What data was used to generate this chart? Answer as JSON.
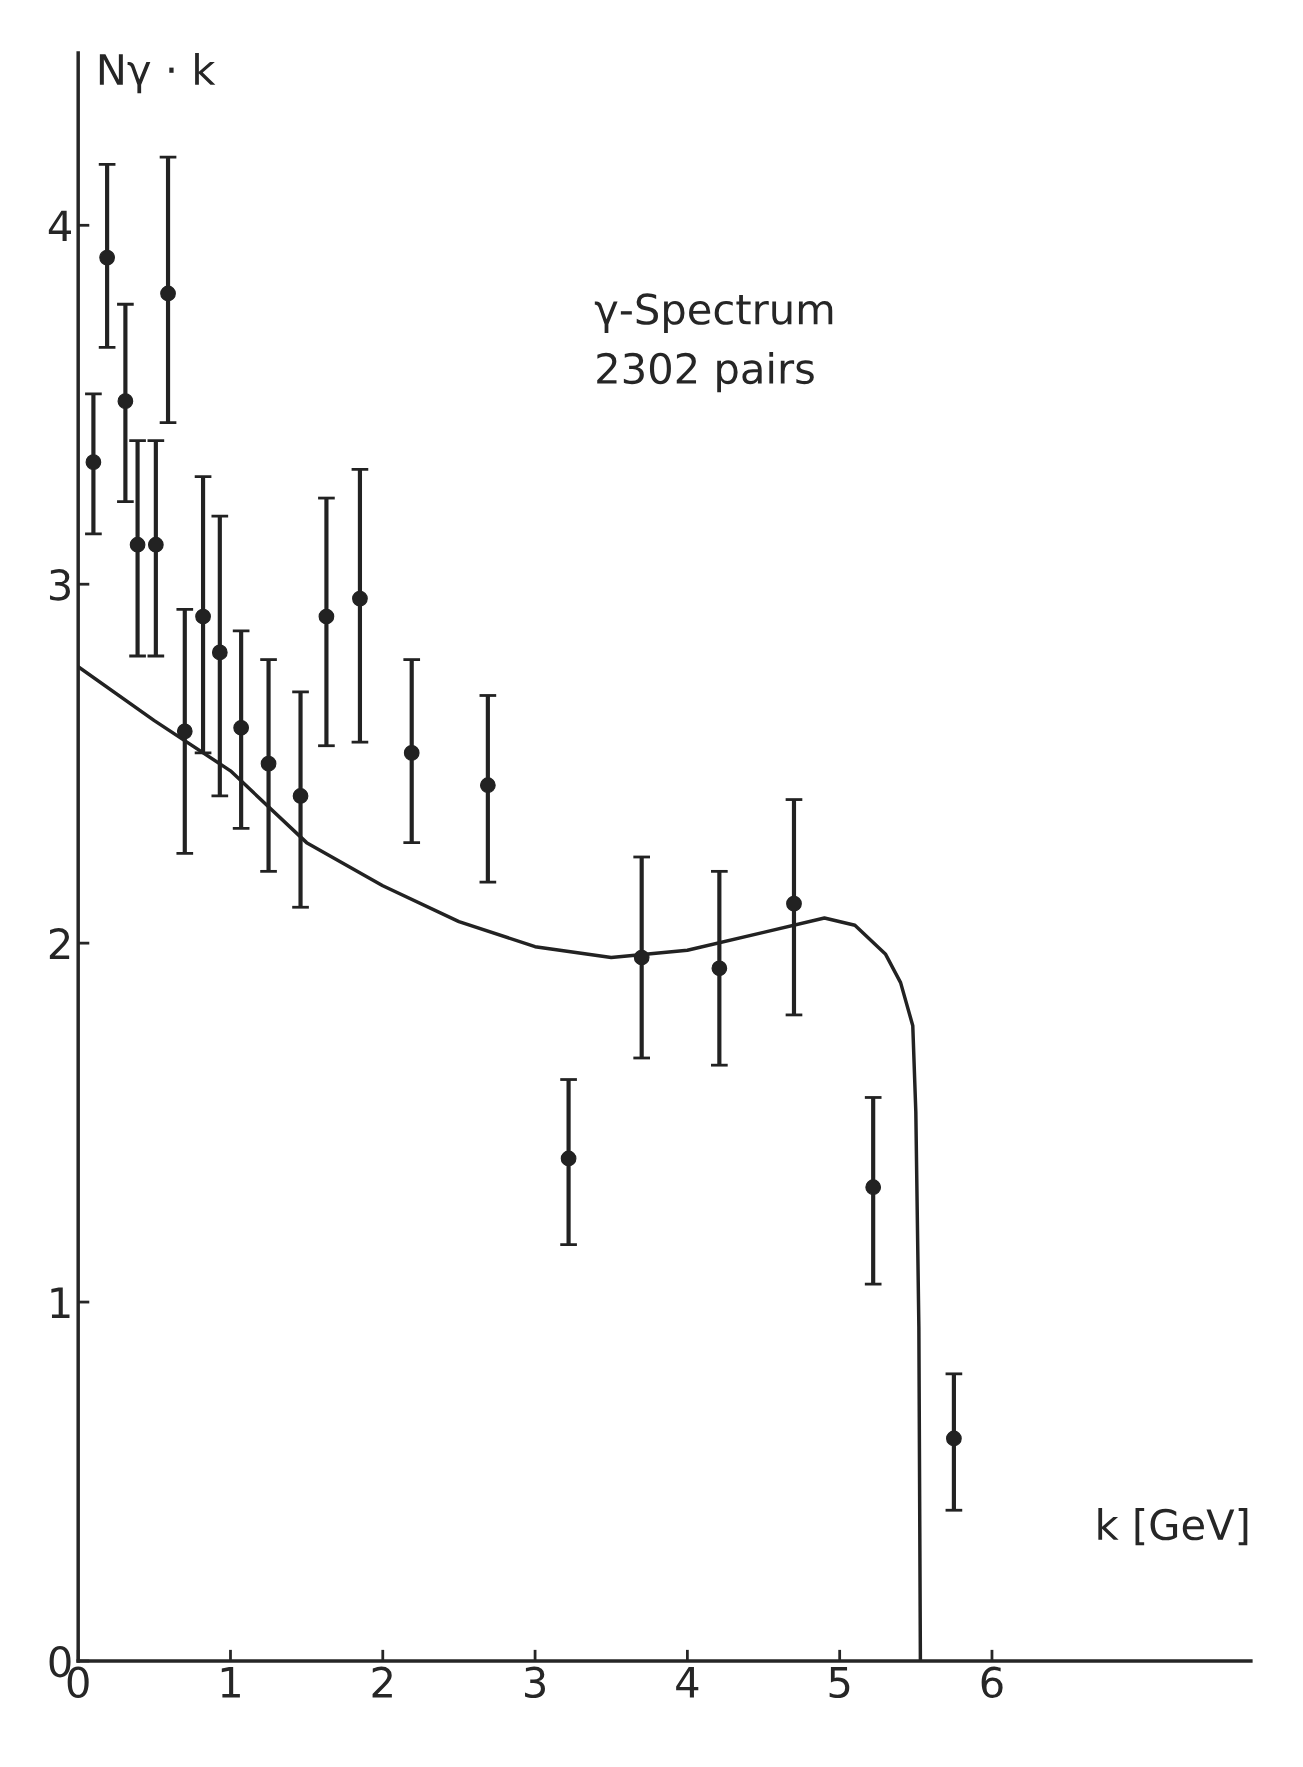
{
  "chart_data": {
    "type": "scatter",
    "xlabel": "k [GeV]",
    "ylabel": "Nγ · k",
    "annotations": [
      "γ-Spectrum\n2302 pairs"
    ],
    "xlim": [
      0,
      7.7
    ],
    "ylim": [
      0,
      4.48
    ],
    "xticks": [
      0,
      1,
      2,
      3,
      4,
      5,
      6
    ],
    "yticks": [
      0,
      1,
      2,
      3,
      4
    ],
    "grid": false,
    "marker": "circle",
    "series": [
      {
        "color": "#222222",
        "x": [
          0.1,
          0.19,
          0.31,
          0.39,
          0.51,
          0.59,
          0.7,
          0.82,
          0.93,
          1.07,
          1.25,
          1.46,
          1.63,
          1.85,
          2.19,
          2.69,
          3.22,
          3.7,
          4.21,
          4.7,
          5.22,
          5.75
        ],
        "values": [
          3.34,
          3.91,
          3.51,
          3.11,
          3.11,
          3.81,
          2.59,
          2.91,
          2.81,
          2.6,
          2.5,
          2.41,
          2.91,
          2.96,
          2.53,
          2.44,
          1.4,
          1.96,
          1.93,
          2.11,
          1.32,
          0.62
        ],
        "errors": [
          [
            3.14,
            3.53
          ],
          [
            3.66,
            4.17
          ],
          [
            3.23,
            3.78
          ],
          [
            2.8,
            3.4
          ],
          [
            2.8,
            3.4
          ],
          [
            3.45,
            4.19
          ],
          [
            2.25,
            2.93
          ],
          [
            2.53,
            3.3
          ],
          [
            2.41,
            3.19
          ],
          [
            2.32,
            2.87
          ],
          [
            2.2,
            2.79
          ],
          [
            2.1,
            2.7
          ],
          [
            2.55,
            3.24
          ],
          [
            2.56,
            3.32
          ],
          [
            2.28,
            2.79
          ],
          [
            2.17,
            2.69
          ],
          [
            1.16,
            1.62
          ],
          [
            1.68,
            2.24
          ],
          [
            1.66,
            2.2
          ],
          [
            1.8,
            2.4
          ],
          [
            1.05,
            1.57
          ],
          [
            0.42,
            0.8
          ]
        ]
      },
      {
        "type": "line",
        "color": "#222222",
        "marker": "none",
        "line_style": "solid",
        "x": [
          0,
          0.5,
          1.0,
          1.5,
          2.0,
          2.5,
          3.0,
          3.5,
          4.0,
          4.5,
          4.9,
          5.1,
          5.3,
          5.4,
          5.48,
          5.5,
          5.52,
          5.53
        ],
        "values": [
          2.77,
          2.62,
          2.48,
          2.28,
          2.16,
          2.06,
          1.99,
          1.96,
          1.98,
          2.03,
          2.07,
          2.05,
          1.97,
          1.89,
          1.77,
          1.53,
          0.93,
          0
        ]
      }
    ]
  }
}
